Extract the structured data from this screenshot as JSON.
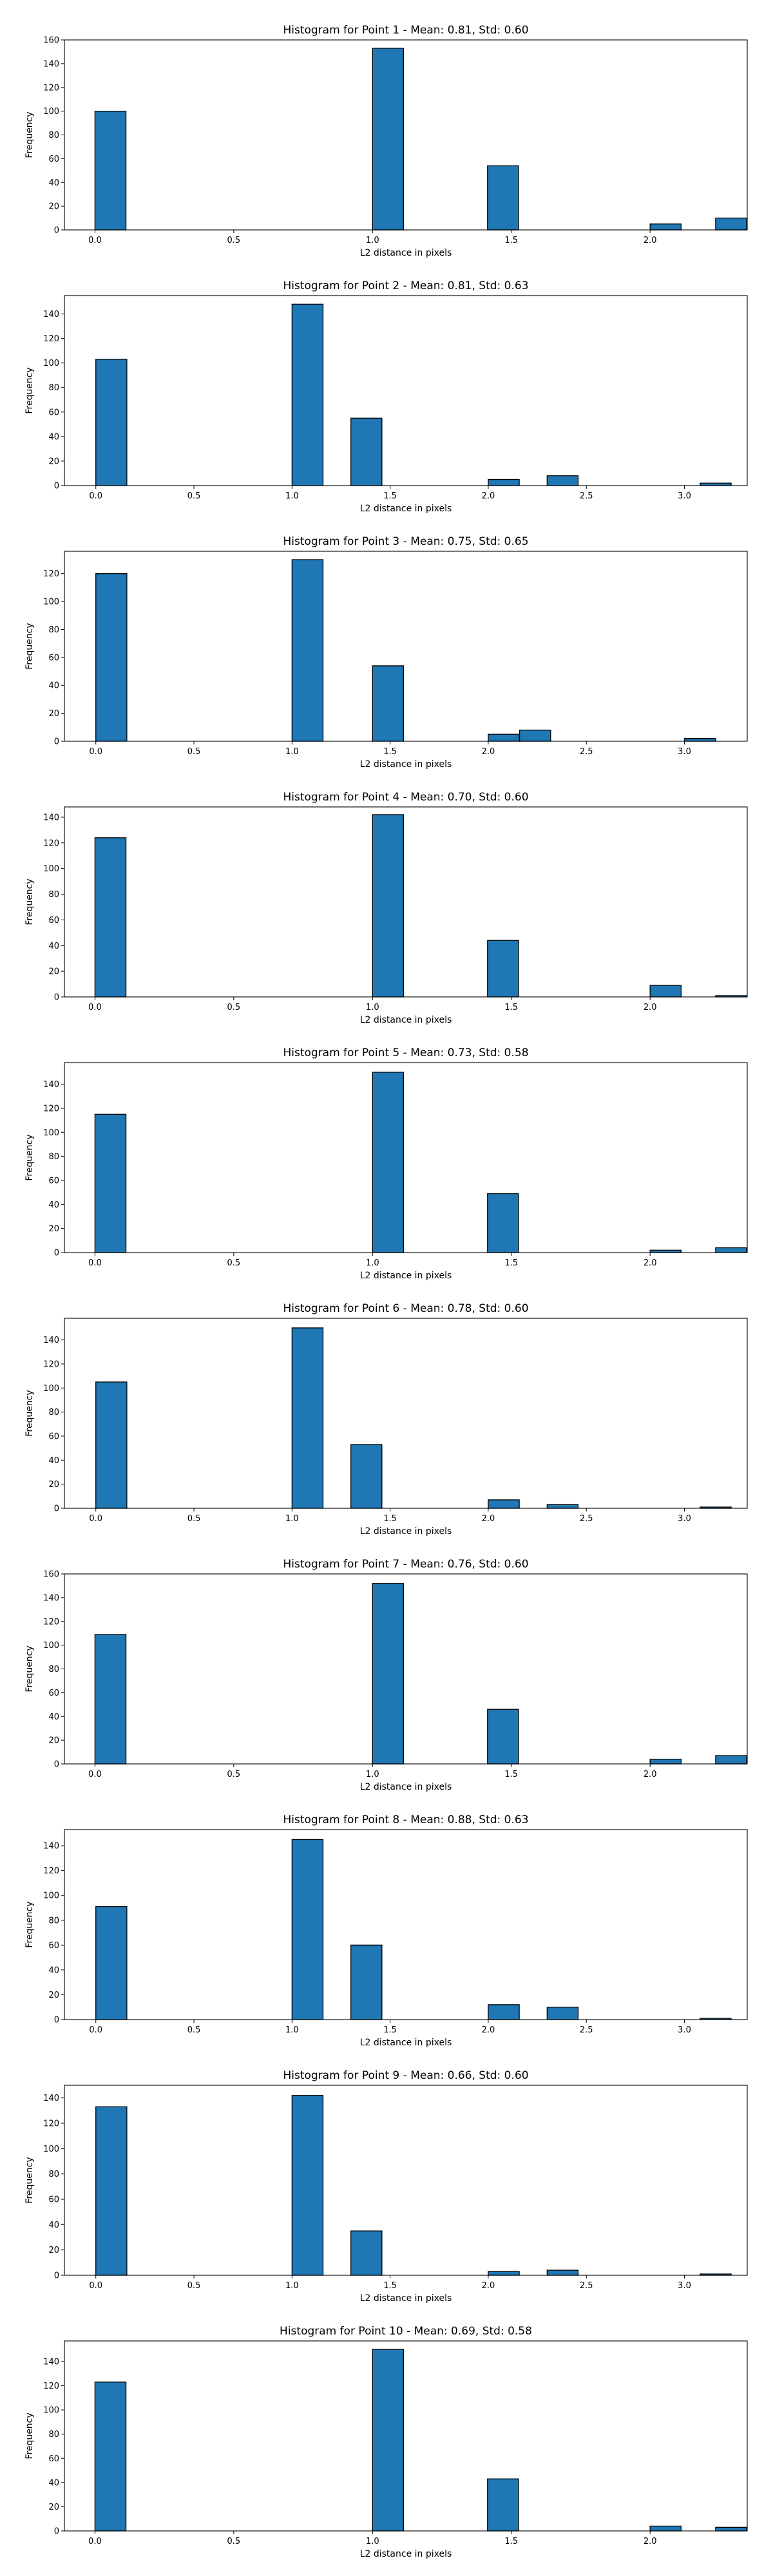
{
  "chart_data": [
    {
      "type": "bar",
      "title": "Histogram for Point 1 - Mean: 0.81, Std: 0.60",
      "xlabel": "L2 distance in pixels",
      "ylabel": "Frequency",
      "xlim": [
        -0.11,
        2.35
      ],
      "ylim": [
        0,
        160
      ],
      "xticks": [
        0.0,
        0.5,
        1.0,
        1.5,
        2.0
      ],
      "xtick_labels": [
        "0.0",
        "0.5",
        "1.0",
        "1.5",
        "2.0"
      ],
      "yticks": [
        0,
        20,
        40,
        60,
        80,
        100,
        120,
        140,
        160
      ],
      "ytick_labels": [
        "0",
        "20",
        "40",
        "60",
        "80",
        "100",
        "120",
        "140",
        "160"
      ],
      "bin_width": 0.1118,
      "bars": [
        {
          "x": 0.0,
          "value": 100
        },
        {
          "x": 1.0,
          "value": 153
        },
        {
          "x": 1.4142,
          "value": 54
        },
        {
          "x": 2.0,
          "value": 5
        },
        {
          "x": 2.2361,
          "value": 10
        }
      ]
    },
    {
      "type": "bar",
      "title": "Histogram for Point 2 - Mean: 0.81, Std: 0.63",
      "xlabel": "L2 distance in pixels",
      "ylabel": "Frequency",
      "xlim": [
        -0.16,
        3.32
      ],
      "ylim": [
        0,
        155
      ],
      "xticks": [
        0.0,
        0.5,
        1.0,
        1.5,
        2.0,
        2.5,
        3.0
      ],
      "xtick_labels": [
        "0.0",
        "0.5",
        "1.0",
        "1.5",
        "2.0",
        "2.5",
        "3.0"
      ],
      "yticks": [
        0,
        20,
        40,
        60,
        80,
        100,
        120,
        140
      ],
      "ytick_labels": [
        "0",
        "20",
        "40",
        "60",
        "80",
        "100",
        "120",
        "140"
      ],
      "bin_width": 0.1581,
      "bars": [
        {
          "x": 0.0,
          "value": 103
        },
        {
          "x": 1.0,
          "value": 148
        },
        {
          "x": 1.3,
          "value": 55
        },
        {
          "x": 2.0,
          "value": 5
        },
        {
          "x": 2.3,
          "value": 8
        },
        {
          "x": 3.08,
          "value": 2
        }
      ]
    },
    {
      "type": "bar",
      "title": "Histogram for Point 3 - Mean: 0.75, Std: 0.65",
      "xlabel": "L2 distance in pixels",
      "ylabel": "Frequency",
      "xlim": [
        -0.16,
        3.32
      ],
      "ylim": [
        0,
        136
      ],
      "xticks": [
        0.0,
        0.5,
        1.0,
        1.5,
        2.0,
        2.5,
        3.0
      ],
      "xtick_labels": [
        "0.0",
        "0.5",
        "1.0",
        "1.5",
        "2.0",
        "2.5",
        "3.0"
      ],
      "yticks": [
        0,
        20,
        40,
        60,
        80,
        100,
        120
      ],
      "ytick_labels": [
        "0",
        "20",
        "40",
        "60",
        "80",
        "100",
        "120"
      ],
      "bin_width": 0.1581,
      "bars": [
        {
          "x": 0.0,
          "value": 120
        },
        {
          "x": 1.0,
          "value": 130
        },
        {
          "x": 1.41,
          "value": 54
        },
        {
          "x": 2.0,
          "value": 5
        },
        {
          "x": 2.16,
          "value": 8
        },
        {
          "x": 3.0,
          "value": 2
        }
      ]
    },
    {
      "type": "bar",
      "title": "Histogram for Point 4 - Mean: 0.70, Std: 0.60",
      "xlabel": "L2 distance in pixels",
      "ylabel": "Frequency",
      "xlim": [
        -0.11,
        2.35
      ],
      "ylim": [
        0,
        148
      ],
      "xticks": [
        0.0,
        0.5,
        1.0,
        1.5,
        2.0
      ],
      "xtick_labels": [
        "0.0",
        "0.5",
        "1.0",
        "1.5",
        "2.0"
      ],
      "yticks": [
        0,
        20,
        40,
        60,
        80,
        100,
        120,
        140
      ],
      "ytick_labels": [
        "0",
        "20",
        "40",
        "60",
        "80",
        "100",
        "120",
        "140"
      ],
      "bin_width": 0.1118,
      "bars": [
        {
          "x": 0.0,
          "value": 124
        },
        {
          "x": 1.0,
          "value": 142
        },
        {
          "x": 1.4142,
          "value": 44
        },
        {
          "x": 2.0,
          "value": 9
        },
        {
          "x": 2.2361,
          "value": 1
        }
      ]
    },
    {
      "type": "bar",
      "title": "Histogram for Point 5 - Mean: 0.73, Std: 0.58",
      "xlabel": "L2 distance in pixels",
      "ylabel": "Frequency",
      "xlim": [
        -0.11,
        2.35
      ],
      "ylim": [
        0,
        158
      ],
      "xticks": [
        0.0,
        0.5,
        1.0,
        1.5,
        2.0
      ],
      "xtick_labels": [
        "0.0",
        "0.5",
        "1.0",
        "1.5",
        "2.0"
      ],
      "yticks": [
        0,
        20,
        40,
        60,
        80,
        100,
        120,
        140
      ],
      "ytick_labels": [
        "0",
        "20",
        "40",
        "60",
        "80",
        "100",
        "120",
        "140"
      ],
      "bin_width": 0.1118,
      "bars": [
        {
          "x": 0.0,
          "value": 115
        },
        {
          "x": 1.0,
          "value": 150
        },
        {
          "x": 1.4142,
          "value": 49
        },
        {
          "x": 2.0,
          "value": 2
        },
        {
          "x": 2.2361,
          "value": 4
        }
      ]
    },
    {
      "type": "bar",
      "title": "Histogram for Point 6 - Mean: 0.78, Std: 0.60",
      "xlabel": "L2 distance in pixels",
      "ylabel": "Frequency",
      "xlim": [
        -0.16,
        3.32
      ],
      "ylim": [
        0,
        158
      ],
      "xticks": [
        0.0,
        0.5,
        1.0,
        1.5,
        2.0,
        2.5,
        3.0
      ],
      "xtick_labels": [
        "0.0",
        "0.5",
        "1.0",
        "1.5",
        "2.0",
        "2.5",
        "3.0"
      ],
      "yticks": [
        0,
        20,
        40,
        60,
        80,
        100,
        120,
        140
      ],
      "ytick_labels": [
        "0",
        "20",
        "40",
        "60",
        "80",
        "100",
        "120",
        "140"
      ],
      "bin_width": 0.1581,
      "bars": [
        {
          "x": 0.0,
          "value": 105
        },
        {
          "x": 1.0,
          "value": 150
        },
        {
          "x": 1.3,
          "value": 53
        },
        {
          "x": 2.0,
          "value": 7
        },
        {
          "x": 2.3,
          "value": 3
        },
        {
          "x": 3.08,
          "value": 1
        }
      ]
    },
    {
      "type": "bar",
      "title": "Histogram for Point 7 - Mean: 0.76, Std: 0.60",
      "xlabel": "L2 distance in pixels",
      "ylabel": "Frequency",
      "xlim": [
        -0.11,
        2.35
      ],
      "ylim": [
        0,
        160
      ],
      "xticks": [
        0.0,
        0.5,
        1.0,
        1.5,
        2.0
      ],
      "xtick_labels": [
        "0.0",
        "0.5",
        "1.0",
        "1.5",
        "2.0"
      ],
      "yticks": [
        0,
        20,
        40,
        60,
        80,
        100,
        120,
        140,
        160
      ],
      "ytick_labels": [
        "0",
        "20",
        "40",
        "60",
        "80",
        "100",
        "120",
        "140",
        "160"
      ],
      "bin_width": 0.1118,
      "bars": [
        {
          "x": 0.0,
          "value": 109
        },
        {
          "x": 1.0,
          "value": 152
        },
        {
          "x": 1.4142,
          "value": 46
        },
        {
          "x": 2.0,
          "value": 4
        },
        {
          "x": 2.2361,
          "value": 7
        }
      ]
    },
    {
      "type": "bar",
      "title": "Histogram for Point 8 - Mean: 0.88, Std: 0.63",
      "xlabel": "L2 distance in pixels",
      "ylabel": "Frequency",
      "xlim": [
        -0.16,
        3.32
      ],
      "ylim": [
        0,
        153
      ],
      "xticks": [
        0.0,
        0.5,
        1.0,
        1.5,
        2.0,
        2.5,
        3.0
      ],
      "xtick_labels": [
        "0.0",
        "0.5",
        "1.0",
        "1.5",
        "2.0",
        "2.5",
        "3.0"
      ],
      "yticks": [
        0,
        20,
        40,
        60,
        80,
        100,
        120,
        140
      ],
      "ytick_labels": [
        "0",
        "20",
        "40",
        "60",
        "80",
        "100",
        "120",
        "140"
      ],
      "bin_width": 0.1581,
      "bars": [
        {
          "x": 0.0,
          "value": 91
        },
        {
          "x": 1.0,
          "value": 145
        },
        {
          "x": 1.3,
          "value": 60
        },
        {
          "x": 2.0,
          "value": 12
        },
        {
          "x": 2.3,
          "value": 10
        },
        {
          "x": 3.08,
          "value": 1
        }
      ]
    },
    {
      "type": "bar",
      "title": "Histogram for Point 9 - Mean: 0.66, Std: 0.60",
      "xlabel": "L2 distance in pixels",
      "ylabel": "Frequency",
      "xlim": [
        -0.16,
        3.32
      ],
      "ylim": [
        0,
        150
      ],
      "xticks": [
        0.0,
        0.5,
        1.0,
        1.5,
        2.0,
        2.5,
        3.0
      ],
      "xtick_labels": [
        "0.0",
        "0.5",
        "1.0",
        "1.5",
        "2.0",
        "2.5",
        "3.0"
      ],
      "yticks": [
        0,
        20,
        40,
        60,
        80,
        100,
        120,
        140
      ],
      "ytick_labels": [
        "0",
        "20",
        "40",
        "60",
        "80",
        "100",
        "120",
        "140"
      ],
      "bin_width": 0.1581,
      "bars": [
        {
          "x": 0.0,
          "value": 133
        },
        {
          "x": 1.0,
          "value": 142
        },
        {
          "x": 1.3,
          "value": 35
        },
        {
          "x": 2.0,
          "value": 3
        },
        {
          "x": 2.3,
          "value": 4
        },
        {
          "x": 3.08,
          "value": 1
        }
      ]
    },
    {
      "type": "bar",
      "title": "Histogram for Point 10 - Mean: 0.69, Std: 0.58",
      "xlabel": "L2 distance in pixels",
      "ylabel": "Frequency",
      "xlim": [
        -0.11,
        2.35
      ],
      "ylim": [
        0,
        157
      ],
      "xticks": [
        0.0,
        0.5,
        1.0,
        1.5,
        2.0
      ],
      "xtick_labels": [
        "0.0",
        "0.5",
        "1.0",
        "1.5",
        "2.0"
      ],
      "yticks": [
        0,
        20,
        40,
        60,
        80,
        100,
        120,
        140
      ],
      "ytick_labels": [
        "0",
        "20",
        "40",
        "60",
        "80",
        "100",
        "120",
        "140"
      ],
      "bin_width": 0.1118,
      "bars": [
        {
          "x": 0.0,
          "value": 123
        },
        {
          "x": 1.0,
          "value": 150
        },
        {
          "x": 1.4142,
          "value": 43
        },
        {
          "x": 2.0,
          "value": 4
        },
        {
          "x": 2.2361,
          "value": 3
        }
      ]
    }
  ],
  "colors": {
    "bar_fill": "#1f77b4",
    "bar_edge": "#000000",
    "axes": "#000000",
    "background": "#ffffff"
  }
}
